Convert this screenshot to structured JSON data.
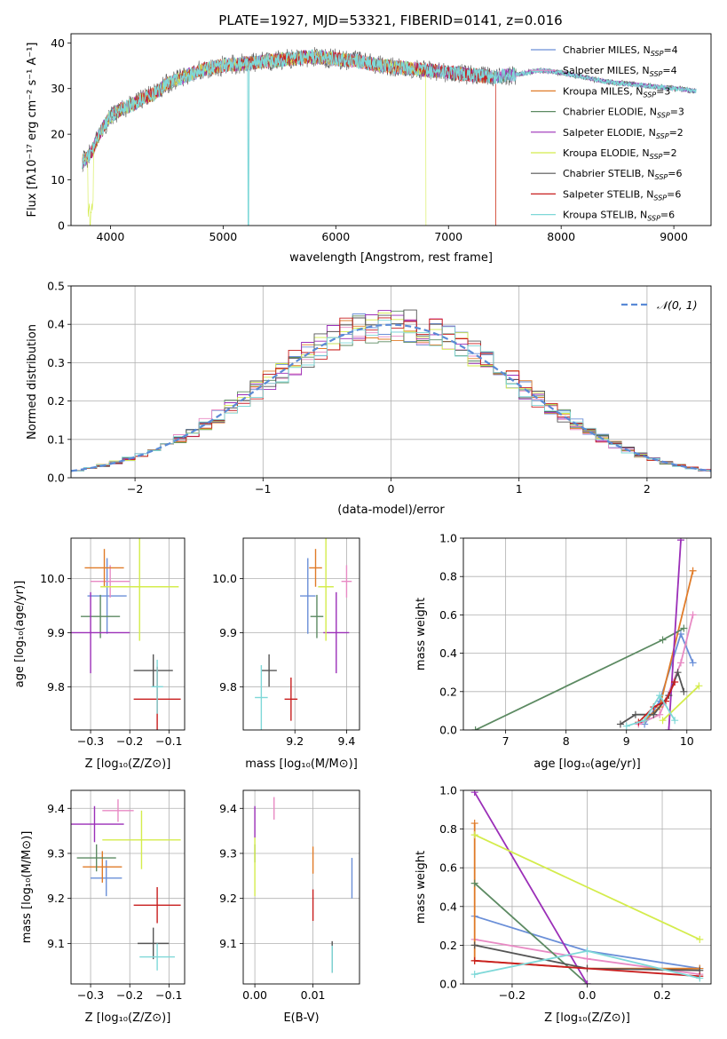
{
  "colors": {
    "chabrier_miles": "#6a8fd8",
    "salpeter_miles": "#e88ac4",
    "kroupa_miles": "#e07b28",
    "chabrier_elodie": "#5c8a62",
    "salpeter_elodie": "#9b2fb8",
    "kroupa_elodie": "#d4ec4c",
    "chabrier_stelib": "#555555",
    "salpeter_stelib": "#c81e1e",
    "kroupa_stelib": "#7ed8d8",
    "normal_curve": "#5a8ad6",
    "grid": "#b0b0b0"
  },
  "chart_data": [
    {
      "id": "spectrum",
      "type": "line",
      "title": "PLATE=1927, MJD=53321, FIBERID=0141, z=0.016",
      "xlabel": "wavelength [Angstrom, rest frame]",
      "ylabel": "Flux [fλ10⁻¹⁷ erg cm⁻² s⁻¹ A⁻¹]",
      "xlim": [
        3650,
        9330
      ],
      "ylim": [
        0,
        42
      ],
      "xticks": [
        "4000",
        "5000",
        "6000",
        "7000",
        "8000",
        "9000"
      ],
      "yticks": [
        "0",
        "10",
        "20",
        "30",
        "40"
      ],
      "grid": false,
      "legend_position": "top-right",
      "continuum": {
        "x": [
          3750,
          3800,
          3850,
          3900,
          3950,
          4000,
          4100,
          4200,
          4300,
          4400,
          4500,
          4600,
          4700,
          4800,
          4900,
          5000,
          5200,
          5400,
          5600,
          5800,
          6000,
          6200,
          6400,
          6600,
          6800,
          7000,
          7200,
          7400,
          7600,
          7800,
          8000,
          8200,
          8400,
          8600,
          8800,
          9000,
          9200
        ],
        "y": [
          14,
          15,
          17,
          20,
          22,
          24,
          25.5,
          26.5,
          28,
          29,
          31,
          32,
          33,
          34,
          34.5,
          35,
          35.5,
          36,
          36.5,
          37,
          36.5,
          36,
          35,
          34.5,
          34,
          33.5,
          33,
          32.5,
          33,
          34,
          33.5,
          32.5,
          31.5,
          31,
          30.5,
          30,
          29.5
        ]
      },
      "absorption_features": [
        {
          "x": 3820,
          "y": 0
        },
        {
          "x": 5225,
          "y": 0
        },
        {
          "x": 6800,
          "y": 0
        },
        {
          "x": 7420,
          "y": 0
        }
      ],
      "series": [
        {
          "name": "Chabrier MILES, N",
          "sub": "SSP",
          "suffix": "=4"
        },
        {
          "name": "Salpeter MILES, N",
          "sub": "SSP",
          "suffix": "=4"
        },
        {
          "name": "Kroupa MILES, N",
          "sub": "SSP",
          "suffix": "=3"
        },
        {
          "name": "Chabrier ELODIE, N",
          "sub": "SSP",
          "suffix": "=3"
        },
        {
          "name": "Salpeter ELODIE, N",
          "sub": "SSP",
          "suffix": "=2"
        },
        {
          "name": "Kroupa ELODIE, N",
          "sub": "SSP",
          "suffix": "=2"
        },
        {
          "name": "Chabrier STELIB, N",
          "sub": "SSP",
          "suffix": "=6"
        },
        {
          "name": "Salpeter STELIB, N",
          "sub": "SSP",
          "suffix": "=6"
        },
        {
          "name": "Kroupa STELIB, N",
          "sub": "SSP",
          "suffix": "=6"
        }
      ]
    },
    {
      "id": "residuals",
      "type": "histogram",
      "xlabel": "(data-model)/error",
      "ylabel": "Normed distribution",
      "xlim": [
        -2.5,
        2.5
      ],
      "ylim": [
        0,
        0.5
      ],
      "xticks": [
        "−2",
        "−1",
        "0",
        "1",
        "2"
      ],
      "yticks": [
        "0.0",
        "0.1",
        "0.2",
        "0.3",
        "0.4",
        "0.5"
      ],
      "grid": true,
      "legend_position": "top-right",
      "legend": "𝒩(0, 1)",
      "bin_width": 0.1,
      "shape": "gaussian_steps"
    },
    {
      "id": "age_vs_Z",
      "type": "errorbar",
      "xlabel": "Z [log₁₀(Z/Z⊙)]",
      "ylabel": "age  [log₁₀(age/yr)]",
      "xlim": [
        -0.35,
        -0.06
      ],
      "ylim": [
        9.72,
        10.075
      ],
      "xticks": [
        "−0.3",
        "−0.2",
        "−0.1"
      ],
      "yticks": [
        "9.8",
        "9.9",
        "10.0"
      ],
      "grid": true,
      "points": [
        {
          "x": -0.258,
          "xerr": 0.05,
          "y": 9.968,
          "yerr": 0.07
        },
        {
          "x": -0.25,
          "xerr": 0.05,
          "y": 9.995,
          "yerr": 0.03
        },
        {
          "x": -0.265,
          "xerr": 0.05,
          "y": 10.02,
          "yerr": 0.035
        },
        {
          "x": -0.275,
          "xerr": 0.05,
          "y": 9.93,
          "yerr": 0.04
        },
        {
          "x": -0.3,
          "xerr": 0.1,
          "y": 9.9,
          "yerr": 0.075
        },
        {
          "x": -0.175,
          "xerr": 0.1,
          "y": 9.985,
          "yerr": 0.1
        },
        {
          "x": -0.14,
          "xerr": 0.05,
          "y": 9.83,
          "yerr": 0.03
        },
        {
          "x": -0.13,
          "xerr": 0.06,
          "y": 9.777,
          "yerr": 0.06
        },
        {
          "x": -0.13,
          "xerr": 0.015,
          "y": 9.8,
          "yerr": 0.05
        }
      ]
    },
    {
      "id": "age_vs_mass",
      "type": "errorbar",
      "xlabel": "mass [log₁₀(M/M⊙)]",
      "xlim": [
        9.0,
        9.45
      ],
      "ylim": [
        9.72,
        10.075
      ],
      "xticks": [
        "9.2",
        "9.4"
      ],
      "yticks": [
        "9.8",
        "9.9",
        "10.0"
      ],
      "grid": true,
      "points": [
        {
          "x": 9.25,
          "xerr": 0.03,
          "y": 9.968,
          "yerr": 0.07
        },
        {
          "x": 9.4,
          "xerr": 0.02,
          "y": 9.995,
          "yerr": 0.03
        },
        {
          "x": 9.28,
          "xerr": 0.025,
          "y": 10.02,
          "yerr": 0.035
        },
        {
          "x": 9.285,
          "xerr": 0.025,
          "y": 9.93,
          "yerr": 0.04
        },
        {
          "x": 9.36,
          "xerr": 0.05,
          "y": 9.9,
          "yerr": 0.075
        },
        {
          "x": 9.32,
          "xerr": 0.03,
          "y": 9.985,
          "yerr": 0.1
        },
        {
          "x": 9.1,
          "xerr": 0.03,
          "y": 9.83,
          "yerr": 0.03
        },
        {
          "x": 9.185,
          "xerr": 0.025,
          "y": 9.777,
          "yerr": 0.04
        },
        {
          "x": 9.07,
          "xerr": 0.025,
          "y": 9.78,
          "yerr": 0.06
        }
      ]
    },
    {
      "id": "weight_vs_age",
      "type": "line",
      "xlabel": "age  [log₁₀(age/yr)]",
      "ylabel": "mass weight",
      "xlim": [
        6.3,
        10.4
      ],
      "ylim": [
        0,
        1
      ],
      "xticks": [
        "7",
        "8",
        "9",
        "10"
      ],
      "yticks": [
        "0.0",
        "0.2",
        "0.4",
        "0.6",
        "0.8",
        "1.0"
      ],
      "grid": true,
      "series": [
        {
          "x": [
            9.3,
            9.55,
            9.9,
            10.1
          ],
          "y": [
            0.03,
            0.15,
            0.5,
            0.35
          ]
        },
        {
          "x": [
            9.2,
            9.55,
            9.9,
            10.1
          ],
          "y": [
            0.03,
            0.08,
            0.35,
            0.6
          ]
        },
        {
          "x": [
            9.3,
            9.55,
            10.1
          ],
          "y": [
            0.05,
            0.12,
            0.83
          ]
        },
        {
          "x": [
            6.5,
            9.6,
            9.95
          ],
          "y": [
            0.0,
            0.47,
            0.53
          ]
        },
        {
          "x": [
            9.7,
            9.9
          ],
          "y": [
            0.0,
            0.99
          ]
        },
        {
          "x": [
            9.6,
            10.2
          ],
          "y": [
            0.05,
            0.23
          ]
        },
        {
          "x": [
            8.9,
            9.15,
            9.45,
            9.7,
            9.85,
            9.95
          ],
          "y": [
            0.03,
            0.08,
            0.08,
            0.18,
            0.3,
            0.2
          ]
        },
        {
          "x": [
            9.2,
            9.45,
            9.65,
            9.8
          ],
          "y": [
            0.04,
            0.12,
            0.15,
            0.25
          ]
        },
        {
          "x": [
            9.0,
            9.3,
            9.55,
            9.8
          ],
          "y": [
            0.02,
            0.05,
            0.18,
            0.05
          ]
        }
      ]
    },
    {
      "id": "mass_vs_Z",
      "type": "errorbar",
      "xlabel": "Z [log₁₀(Z/Z⊙)]",
      "ylabel": "mass [log₁₀(M/M⊙)]",
      "xlim": [
        -0.35,
        -0.06
      ],
      "ylim": [
        9.01,
        9.44
      ],
      "xticks": [
        "−0.3",
        "−0.2",
        "−0.1"
      ],
      "yticks": [
        "9.1",
        "9.2",
        "9.3",
        "9.4"
      ],
      "grid": true,
      "points": [
        {
          "x": -0.26,
          "xerr": 0.04,
          "y": 9.245,
          "yerr": 0.04
        },
        {
          "x": -0.23,
          "xerr": 0.04,
          "y": 9.395,
          "yerr": 0.025
        },
        {
          "x": -0.27,
          "xerr": 0.05,
          "y": 9.27,
          "yerr": 0.035
        },
        {
          "x": -0.285,
          "xerr": 0.05,
          "y": 9.29,
          "yerr": 0.03
        },
        {
          "x": -0.29,
          "xerr": 0.075,
          "y": 9.365,
          "yerr": 0.04
        },
        {
          "x": -0.17,
          "xerr": 0.1,
          "y": 9.33,
          "yerr": 0.065
        },
        {
          "x": -0.14,
          "xerr": 0.04,
          "y": 9.1,
          "yerr": 0.035
        },
        {
          "x": -0.13,
          "xerr": 0.06,
          "y": 9.185,
          "yerr": 0.04
        },
        {
          "x": -0.13,
          "xerr": 0.045,
          "y": 9.07,
          "yerr": 0.03
        }
      ]
    },
    {
      "id": "mass_vs_ebv",
      "type": "errorbar",
      "xlabel": "E(B-V)",
      "xlim": [
        -0.002,
        0.018
      ],
      "ylim": [
        9.01,
        9.44
      ],
      "xticks": [
        "0.00",
        "0.01"
      ],
      "yticks": [
        "9.1",
        "9.2",
        "9.3",
        "9.4"
      ],
      "grid": true,
      "points": [
        {
          "x": 0.0167,
          "xerr": 0,
          "y": 9.245,
          "yerr": 0.045
        },
        {
          "x": 0.0033,
          "xerr": 0,
          "y": 9.4,
          "yerr": 0.025
        },
        {
          "x": 0.01,
          "xerr": 0,
          "y": 9.285,
          "yerr": 0.03
        },
        {
          "x": 0.0,
          "xerr": 0,
          "y": 9.3,
          "yerr": 0.02
        },
        {
          "x": 0.0,
          "xerr": 0,
          "y": 9.37,
          "yerr": 0.035
        },
        {
          "x": 0.0,
          "xerr": 0,
          "y": 9.27,
          "yerr": 0.065
        },
        {
          "x": 0.0133,
          "xerr": 0,
          "y": 9.07,
          "yerr": 0.035
        },
        {
          "x": 0.01,
          "xerr": 0,
          "y": 9.185,
          "yerr": 0.035
        },
        {
          "x": 0.0133,
          "xerr": 0,
          "y": 9.065,
          "yerr": 0.03
        }
      ]
    },
    {
      "id": "weight_vs_Z",
      "type": "line",
      "xlabel": "Z [log₁₀(Z/Z⊙)]",
      "ylabel": "mass weight",
      "xlim": [
        -0.33,
        0.33
      ],
      "ylim": [
        0,
        1
      ],
      "xticks": [
        "−0.2",
        "0.0",
        "0.2"
      ],
      "yticks": [
        "0.0",
        "0.2",
        "0.4",
        "0.6",
        "0.8",
        "1.0"
      ],
      "grid": true,
      "series": [
        {
          "x": [
            -0.3,
            0.0,
            0.3
          ],
          "y": [
            0.35,
            0.17,
            0.08
          ]
        },
        {
          "x": [
            -0.3,
            0.0,
            0.3
          ],
          "y": [
            0.23,
            0.13,
            0.05
          ]
        },
        {
          "x": [
            -0.3,
            -0.3,
            0.0,
            0.3
          ],
          "y": [
            0.83,
            0.12,
            0.08,
            0.08
          ]
        },
        {
          "x": [
            -0.3,
            0.0
          ],
          "y": [
            0.52,
            0.0
          ]
        },
        {
          "x": [
            -0.3,
            0.0
          ],
          "y": [
            0.99,
            0.0
          ]
        },
        {
          "x": [
            -0.3,
            0.3
          ],
          "y": [
            0.77,
            0.23
          ]
        },
        {
          "x": [
            -0.3,
            0.0,
            0.3
          ],
          "y": [
            0.2,
            0.08,
            0.07
          ]
        },
        {
          "x": [
            -0.3,
            0.3
          ],
          "y": [
            0.12,
            0.04
          ]
        },
        {
          "x": [
            -0.3,
            0.0,
            0.3
          ],
          "y": [
            0.05,
            0.17,
            0.03
          ]
        }
      ]
    }
  ]
}
